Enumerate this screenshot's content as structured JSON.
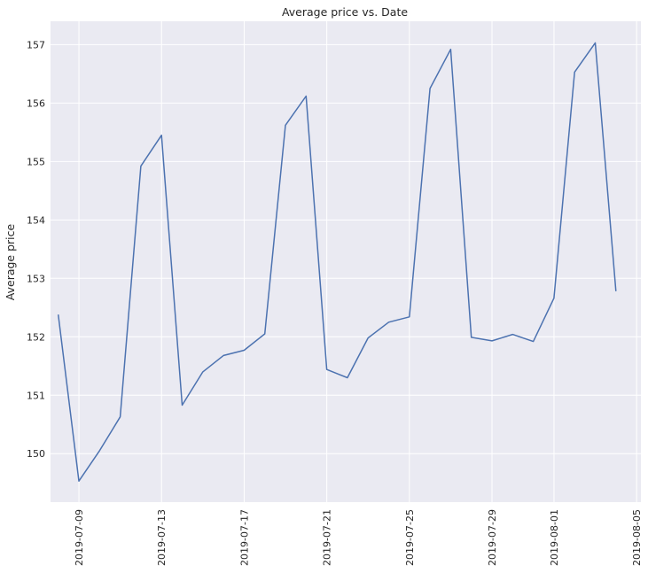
{
  "chart_data": {
    "type": "line",
    "title": "Average price vs. Date",
    "xlabel": "",
    "ylabel": "Average price",
    "grid": true,
    "background": "#eaeaf2",
    "line_color": "#4c72b0",
    "x_ticks": [
      "2019-07-09",
      "2019-07-13",
      "2019-07-17",
      "2019-07-21",
      "2019-07-25",
      "2019-07-29",
      "2019-08-01",
      "2019-08-05"
    ],
    "y_ticks": [
      150,
      151,
      152,
      153,
      154,
      155,
      156,
      157
    ],
    "xlim": [
      "2019-07-07T15:00",
      "2019-08-05T05:00"
    ],
    "ylim": [
      149.17,
      157.4
    ],
    "series": [
      {
        "x": [
          "2019-07-08",
          "2019-07-09",
          "2019-07-10",
          "2019-07-11",
          "2019-07-12",
          "2019-07-13",
          "2019-07-14",
          "2019-07-15",
          "2019-07-16",
          "2019-07-17",
          "2019-07-18",
          "2019-07-19",
          "2019-07-20",
          "2019-07-21",
          "2019-07-22",
          "2019-07-23",
          "2019-07-24",
          "2019-07-25",
          "2019-07-26",
          "2019-07-27",
          "2019-07-28",
          "2019-07-29",
          "2019-07-30",
          "2019-07-31",
          "2019-08-01",
          "2019-08-02",
          "2019-08-03",
          "2019-08-04"
        ],
        "values": [
          152.38,
          149.53,
          150.05,
          150.63,
          154.92,
          155.45,
          150.83,
          151.4,
          151.68,
          151.77,
          152.05,
          155.62,
          156.12,
          151.44,
          151.3,
          151.98,
          152.25,
          152.34,
          156.25,
          156.92,
          151.99,
          151.93,
          152.04,
          151.92,
          152.66,
          156.53,
          157.03,
          152.78
        ]
      }
    ]
  }
}
